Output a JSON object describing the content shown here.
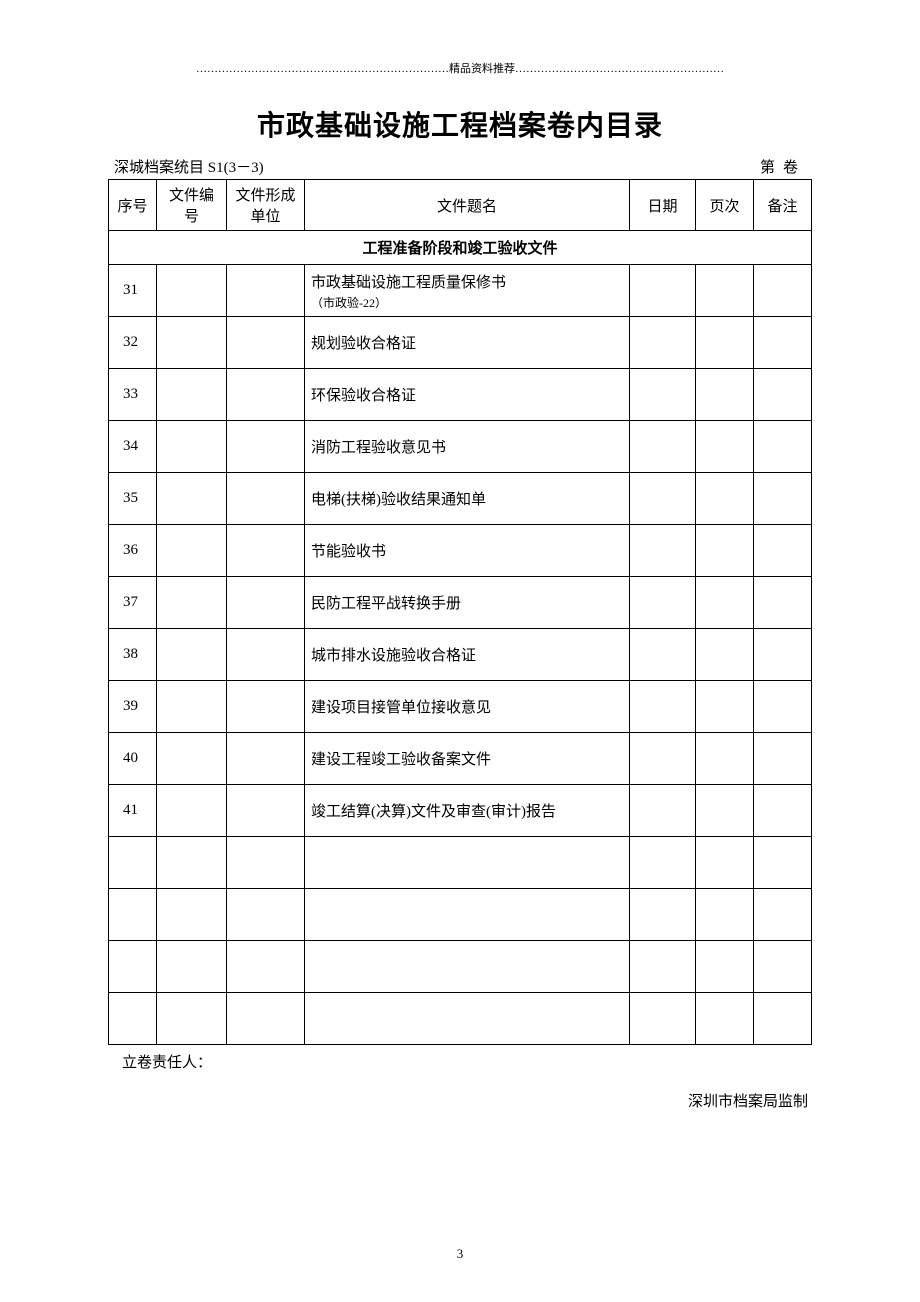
{
  "decoration": "……………………………………………………………精品资料推荐…………………………………………………",
  "title": "市政基础设施工程档案卷内目录",
  "subheader": {
    "left": "深城档案统目 S1(3－3)",
    "right_prefix": "第",
    "right_suffix": "卷"
  },
  "columns": {
    "seq": "序号",
    "docno": "文件编号",
    "unit": "文件形成单位",
    "name": "文件题名",
    "date": "日期",
    "page": "页次",
    "note": "备注"
  },
  "section_title": "工程准备阶段和竣工验收文件",
  "rows": [
    {
      "seq": "31",
      "name": "市政基础设施工程质量保修书",
      "sub": "（市政验-22）"
    },
    {
      "seq": "32",
      "name": "规划验收合格证",
      "sub": ""
    },
    {
      "seq": "33",
      "name": "环保验收合格证",
      "sub": ""
    },
    {
      "seq": "34",
      "name": "消防工程验收意见书",
      "sub": ""
    },
    {
      "seq": "35",
      "name": "电梯(扶梯)验收结果通知单",
      "sub": ""
    },
    {
      "seq": "36",
      "name": "节能验收书",
      "sub": ""
    },
    {
      "seq": "37",
      "name": "民防工程平战转换手册",
      "sub": ""
    },
    {
      "seq": "38",
      "name": "城市排水设施验收合格证",
      "sub": ""
    },
    {
      "seq": "39",
      "name": "建设项目接管单位接收意见",
      "sub": ""
    },
    {
      "seq": "40",
      "name": "建设工程竣工验收备案文件",
      "sub": ""
    },
    {
      "seq": "41",
      "name": "竣工结算(决算)文件及审查(审计)报告",
      "sub": ""
    },
    {
      "seq": "",
      "name": "",
      "sub": ""
    },
    {
      "seq": "",
      "name": "",
      "sub": ""
    },
    {
      "seq": "",
      "name": "",
      "sub": ""
    },
    {
      "seq": "",
      "name": "",
      "sub": ""
    }
  ],
  "footer": {
    "left": "立卷责任人：",
    "right": "深圳市档案局监制"
  },
  "page_number": "3"
}
